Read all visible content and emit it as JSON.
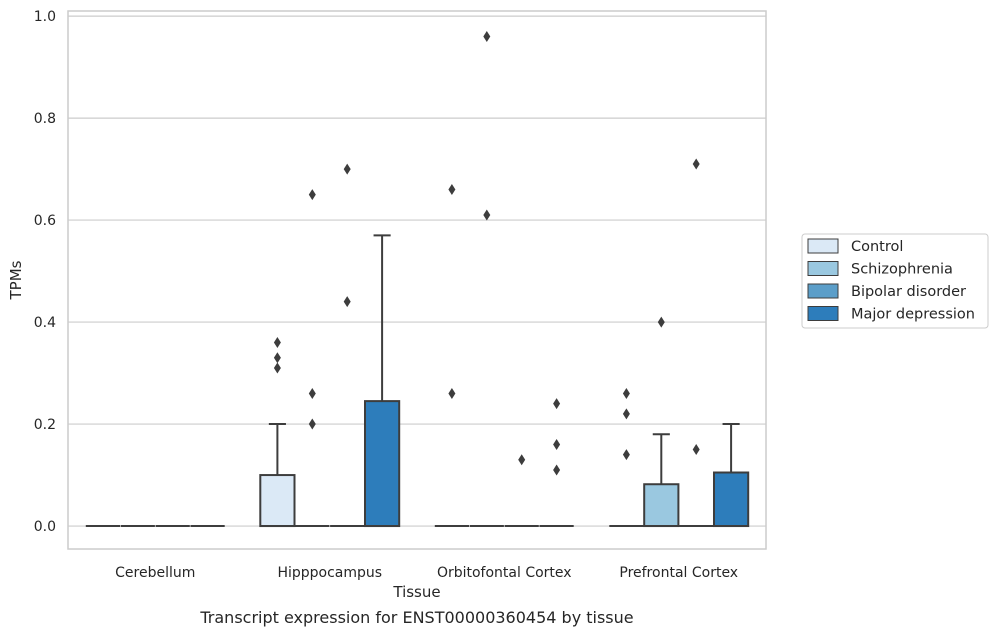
{
  "caption": "Transcript expression for ENST00000360454 by tissue",
  "chart_data": {
    "type": "box",
    "title": "",
    "xlabel": "Tissue",
    "ylabel": "TPMs",
    "ylim": [
      -0.045,
      1.01
    ],
    "yticks": [
      0.0,
      0.2,
      0.4,
      0.6,
      0.8,
      1.0
    ],
    "ytick_labels": [
      "0.0",
      "0.2",
      "0.4",
      "0.6",
      "0.8",
      "1.0"
    ],
    "grid": true,
    "legend_position": "right",
    "categories": [
      "Cerebellum",
      "Hipppocampus",
      "Orbitofontal Cortex",
      "Prefrontal Cortex"
    ],
    "series": [
      {
        "name": "Control",
        "color": "#dbe9f6",
        "boxes": [
          {
            "q1": 0,
            "median": 0,
            "q3": 0,
            "whisker_low": 0,
            "whisker_high": 0,
            "outliers": []
          },
          {
            "q1": 0,
            "median": 0,
            "q3": 0.1,
            "whisker_low": 0,
            "whisker_high": 0.2,
            "outliers": [
              0.36,
              0.33,
              0.31
            ]
          },
          {
            "q1": 0,
            "median": 0,
            "q3": 0,
            "whisker_low": 0,
            "whisker_high": 0,
            "outliers": [
              0.66,
              0.26
            ]
          },
          {
            "q1": 0,
            "median": 0,
            "q3": 0,
            "whisker_low": 0,
            "whisker_high": 0,
            "outliers": [
              0.26,
              0.22,
              0.14
            ]
          }
        ]
      },
      {
        "name": "Schizophrenia",
        "color": "#9ac8e0",
        "boxes": [
          {
            "q1": 0,
            "median": 0,
            "q3": 0,
            "whisker_low": 0,
            "whisker_high": 0,
            "outliers": []
          },
          {
            "q1": 0,
            "median": 0,
            "q3": 0,
            "whisker_low": 0,
            "whisker_high": 0,
            "outliers": [
              0.65,
              0.26,
              0.2
            ]
          },
          {
            "q1": 0,
            "median": 0,
            "q3": 0,
            "whisker_low": 0,
            "whisker_high": 0,
            "outliers": [
              0.96,
              0.61
            ]
          },
          {
            "q1": 0,
            "median": 0,
            "q3": 0.082,
            "whisker_low": 0,
            "whisker_high": 0.18,
            "outliers": [
              0.4
            ]
          }
        ]
      },
      {
        "name": "Bipolar disorder",
        "color": "#5b9ec9",
        "boxes": [
          {
            "q1": 0,
            "median": 0,
            "q3": 0,
            "whisker_low": 0,
            "whisker_high": 0,
            "outliers": []
          },
          {
            "q1": 0,
            "median": 0,
            "q3": 0,
            "whisker_low": 0,
            "whisker_high": 0,
            "outliers": [
              0.7,
              0.44
            ]
          },
          {
            "q1": 0,
            "median": 0,
            "q3": 0,
            "whisker_low": 0,
            "whisker_high": 0,
            "outliers": [
              0.13
            ]
          },
          {
            "q1": 0,
            "median": 0,
            "q3": 0,
            "whisker_low": 0,
            "whisker_high": 0,
            "outliers": [
              0.71,
              0.15
            ]
          }
        ]
      },
      {
        "name": "Major depression",
        "color": "#2d7dbb",
        "boxes": [
          {
            "q1": 0,
            "median": 0,
            "q3": 0,
            "whisker_low": 0,
            "whisker_high": 0,
            "outliers": []
          },
          {
            "q1": 0,
            "median": 0,
            "q3": 0.245,
            "whisker_low": 0,
            "whisker_high": 0.57,
            "outliers": []
          },
          {
            "q1": 0,
            "median": 0,
            "q3": 0,
            "whisker_low": 0,
            "whisker_high": 0,
            "outliers": [
              0.24,
              0.16,
              0.11
            ]
          },
          {
            "q1": 0,
            "median": 0,
            "q3": 0.105,
            "whisker_low": 0,
            "whisker_high": 0.2,
            "outliers": []
          }
        ]
      }
    ],
    "colors": {
      "axes_edge": "#cccccc",
      "grid": "#cccccc",
      "box_line": "#3d3d3d",
      "text": "#262626"
    }
  }
}
